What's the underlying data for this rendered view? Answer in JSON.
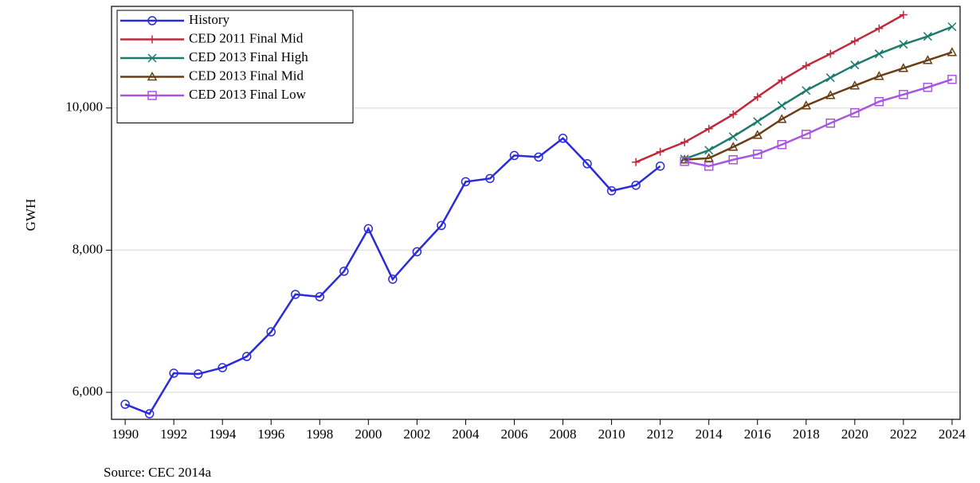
{
  "chart_data": {
    "type": "line",
    "y_label": "GWH",
    "source": "Source: CEC 2014a",
    "x": [
      1990,
      1991,
      1992,
      1993,
      1994,
      1995,
      1996,
      1997,
      1998,
      1999,
      2000,
      2001,
      2002,
      2003,
      2004,
      2005,
      2006,
      2007,
      2008,
      2009,
      2010,
      2011,
      2012,
      2013,
      2014,
      2015,
      2016,
      2017,
      2018,
      2019,
      2020,
      2021,
      2022,
      2023,
      2024
    ],
    "series": [
      {
        "name": "History",
        "color": "#2b2bd9",
        "marker": "circle",
        "values": [
          5832,
          5698,
          6269,
          6258,
          6347,
          6504,
          6851,
          7378,
          7345,
          7703,
          8302,
          7591,
          7978,
          8347,
          8963,
          9008,
          9332,
          9310,
          9574,
          9216,
          8835,
          8913,
          9182,
          null,
          null,
          null,
          null,
          null,
          null,
          null,
          null,
          null,
          null,
          null,
          null
        ]
      },
      {
        "name": "CED 2011 Final Mid",
        "color": "#c0283c",
        "marker": "plus",
        "values": [
          null,
          null,
          null,
          null,
          null,
          null,
          null,
          null,
          null,
          null,
          null,
          null,
          null,
          null,
          null,
          null,
          null,
          null,
          null,
          null,
          null,
          9238,
          9384,
          9518,
          9709,
          9910,
          10157,
          10392,
          10594,
          10762,
          10941,
          11120,
          11311,
          null,
          null
        ]
      },
      {
        "name": "CED 2013 Final High",
        "color": "#1f7a6e",
        "marker": "x",
        "values": [
          null,
          null,
          null,
          null,
          null,
          null,
          null,
          null,
          null,
          null,
          null,
          null,
          null,
          null,
          null,
          null,
          null,
          null,
          null,
          null,
          null,
          null,
          null,
          9283,
          9406,
          9597,
          9810,
          10034,
          10246,
          10426,
          10605,
          10762,
          10896,
          11008,
          11143
        ]
      },
      {
        "name": "CED 2013 Final Mid",
        "color": "#6b3d12",
        "marker": "triangle",
        "values": [
          null,
          null,
          null,
          null,
          null,
          null,
          null,
          null,
          null,
          null,
          null,
          null,
          null,
          null,
          null,
          null,
          null,
          null,
          null,
          null,
          null,
          null,
          null,
          9272,
          9294,
          9451,
          9619,
          9843,
          10034,
          10179,
          10314,
          10448,
          10560,
          10672,
          10784
        ]
      },
      {
        "name": "CED 2013 Final Low",
        "color": "#a855e0",
        "marker": "square",
        "values": [
          null,
          null,
          null,
          null,
          null,
          null,
          null,
          null,
          null,
          null,
          null,
          null,
          null,
          null,
          null,
          null,
          null,
          null,
          null,
          null,
          null,
          null,
          null,
          9249,
          9182,
          9272,
          9350,
          9485,
          9630,
          9787,
          9933,
          10090,
          10190,
          10291,
          10403
        ]
      }
    ],
    "xlim": [
      1989.44,
      2024.33
    ],
    "xticks": [
      1990,
      1992,
      1994,
      1996,
      1998,
      2000,
      2002,
      2004,
      2006,
      2008,
      2010,
      2012,
      2014,
      2016,
      2018,
      2020,
      2022,
      2024
    ],
    "ylim": [
      5620,
      11430
    ],
    "yticks": [
      {
        "value": 6000,
        "label": "6,000"
      },
      {
        "value": 8000,
        "label": "8,000"
      },
      {
        "value": 10000,
        "label": "10,000"
      }
    ],
    "grid": true,
    "legend": "upper left"
  }
}
